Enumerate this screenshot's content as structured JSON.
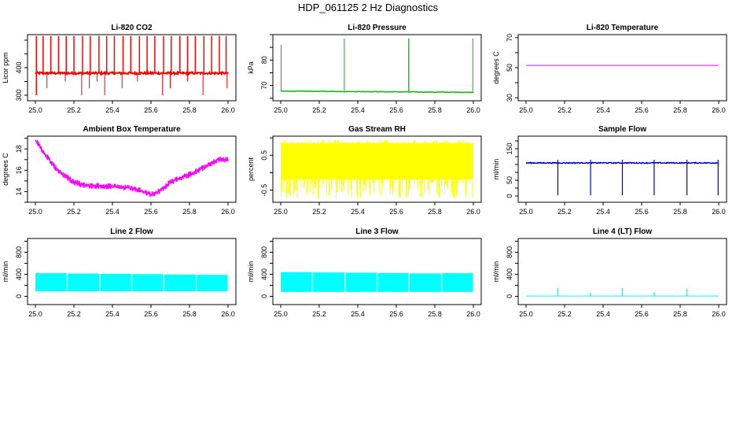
{
  "figure": {
    "title": "HDP_061125  2 Hz Diagnostics"
  },
  "chart_data": [
    {
      "type": "line",
      "title": "Li-820 CO2",
      "ylabel": "Licor ppm",
      "xlabel": "",
      "xlim": [
        25.0,
        26.0
      ],
      "xticks": [
        25.0,
        25.2,
        25.4,
        25.6,
        25.8,
        26.0
      ],
      "xtick_labels": [
        "25.0",
        "25.2",
        "25.4",
        "25.6",
        "25.8",
        "26.0"
      ],
      "ylim": [
        280,
        520
      ],
      "yticks": [
        300,
        400
      ],
      "ytick_labels": [
        "300",
        "400"
      ],
      "color": "#ff0000",
      "series": [
        {
          "baseline": 380,
          "noise": 4,
          "spike_up_value": 515,
          "spike_down_value": 300,
          "spikes_up_x": [
            25.005,
            25.04,
            25.08,
            25.12,
            25.16,
            25.2,
            25.245,
            25.285,
            25.33,
            25.37,
            25.41,
            25.455,
            25.495,
            25.54,
            25.58,
            25.62,
            25.665,
            25.705,
            25.75,
            25.79,
            25.83,
            25.875,
            25.915,
            25.955,
            25.99
          ],
          "spikes_down_x": [
            25.005,
            25.06,
            25.155,
            25.24,
            25.28,
            25.32,
            25.36,
            25.45,
            25.53,
            25.66,
            25.7,
            25.79,
            25.87,
            25.995
          ]
        }
      ]
    },
    {
      "type": "line",
      "title": "Li-820 Pressure",
      "ylabel": "kPa",
      "xlabel": "",
      "xlim": [
        25.0,
        26.0
      ],
      "xticks": [
        25.0,
        25.2,
        25.4,
        25.6,
        25.8,
        26.0
      ],
      "xtick_labels": [
        "25.0",
        "25.2",
        "25.4",
        "25.6",
        "25.8",
        "26.0"
      ],
      "ylim": [
        64,
        90
      ],
      "yticks": [
        70,
        80
      ],
      "ytick_labels": [
        "70",
        "80"
      ],
      "color": "#00bb00",
      "series": [
        {
          "baseline_start": 67.8,
          "baseline_end": 67.3,
          "noise": 0.1,
          "spike_up_value": 88.5,
          "spikes_up_x": [
            25.0,
            25.33,
            25.665,
            25.997
          ],
          "start_value": 86
        }
      ]
    },
    {
      "type": "line",
      "title": "Li-820 Temperature",
      "ylabel": "degrees C",
      "xlabel": "",
      "xlim": [
        25.0,
        26.0
      ],
      "xticks": [
        25.0,
        25.2,
        25.4,
        25.6,
        25.8,
        26.0
      ],
      "xtick_labels": [
        "25.0",
        "25.2",
        "25.4",
        "25.6",
        "25.8",
        "26.0"
      ],
      "ylim": [
        28,
        72
      ],
      "yticks": [
        30,
        50,
        70
      ],
      "ytick_labels": [
        "30",
        "50",
        "70"
      ],
      "color": "#ff00ff",
      "series": [
        {
          "x": [
            25.0,
            26.0
          ],
          "y": [
            51.5,
            51.5
          ]
        }
      ]
    },
    {
      "type": "line",
      "title": "Ambient Box Temperature",
      "ylabel": "degrees C",
      "xlabel": "",
      "xlim": [
        25.0,
        26.0
      ],
      "xticks": [
        25.0,
        25.2,
        25.4,
        25.6,
        25.8,
        26.0
      ],
      "xtick_labels": [
        "25.0",
        "25.2",
        "25.4",
        "25.6",
        "25.8",
        "26.0"
      ],
      "ylim": [
        13,
        19.2
      ],
      "yticks": [
        14,
        16,
        18
      ],
      "ytick_labels": [
        "14",
        "16",
        "18"
      ],
      "color": "#ff00ff",
      "series": [
        {
          "x": [
            25.0,
            25.05,
            25.1,
            25.15,
            25.2,
            25.25,
            25.3,
            25.4,
            25.5,
            25.55,
            25.6,
            25.65,
            25.7,
            25.8,
            25.9,
            25.95,
            26.0
          ],
          "y": [
            18.8,
            17.5,
            16.3,
            15.5,
            14.9,
            14.6,
            14.55,
            14.5,
            14.3,
            14.1,
            13.7,
            14.1,
            14.9,
            15.6,
            16.5,
            17.0,
            17.0
          ],
          "band": 0.3
        }
      ]
    },
    {
      "type": "line",
      "title": "Gas Stream RH",
      "ylabel": "percent",
      "xlabel": "",
      "xlim": [
        25.0,
        26.0
      ],
      "xticks": [
        25.0,
        25.2,
        25.4,
        25.6,
        25.8,
        26.0
      ],
      "xtick_labels": [
        "25.0",
        "25.2",
        "25.4",
        "25.6",
        "25.8",
        "26.0"
      ],
      "ylim": [
        -0.85,
        1.05
      ],
      "yticks": [
        -0.5,
        0.5
      ],
      "ytick_labels": [
        "-0.5",
        "0.5"
      ],
      "color": "#ffff00",
      "series": [
        {
          "band_top": 0.85,
          "band_bottom": -0.2,
          "spike_low": -0.75,
          "spike_high": 0.95
        }
      ]
    },
    {
      "type": "line",
      "title": "Sample Flow",
      "ylabel": "ml/min",
      "xlabel": "",
      "xlim": [
        25.0,
        26.0
      ],
      "xticks": [
        25.0,
        25.2,
        25.4,
        25.6,
        25.8,
        26.0
      ],
      "xtick_labels": [
        "25.0",
        "25.2",
        "25.4",
        "25.6",
        "25.8",
        "26.0"
      ],
      "ylim": [
        -20,
        190
      ],
      "yticks": [
        0,
        50,
        150
      ],
      "ytick_labels": [
        "0",
        "50",
        "150"
      ],
      "color": "#0000cc",
      "series": [
        {
          "baseline": 105,
          "noise": 1.5,
          "spike_up_value": 115,
          "spike_down_value": 2,
          "spikes_down_x": [
            25.165,
            25.335,
            25.5,
            25.665,
            25.835,
            25.997
          ],
          "dip_widths": [
            0.0,
            0.004,
            0.0,
            0.004,
            0.0,
            0.002
          ]
        }
      ]
    },
    {
      "type": "line",
      "title": "Line 2 Flow",
      "ylabel": "ml/min",
      "xlabel": "",
      "xlim": [
        25.0,
        26.0
      ],
      "xticks": [
        25.0,
        25.2,
        25.4,
        25.6,
        25.8,
        26.0
      ],
      "xtick_labels": [
        "25.0",
        "25.2",
        "25.4",
        "25.6",
        "25.8",
        "26.0"
      ],
      "ylim": [
        -150,
        1050
      ],
      "yticks": [
        0,
        400,
        800
      ],
      "ytick_labels": [
        "0",
        "400",
        "800"
      ],
      "color": "#00ffff",
      "series": [
        {
          "band_top": 420,
          "band_bottom": 90,
          "gaps_x": [
            25.165,
            25.335,
            25.5,
            25.665,
            25.835
          ],
          "end_top": 390
        }
      ]
    },
    {
      "type": "line",
      "title": "Line 3 Flow",
      "ylabel": "ml/min",
      "xlabel": "",
      "xlim": [
        25.0,
        26.0
      ],
      "xticks": [
        25.0,
        25.2,
        25.4,
        25.6,
        25.8,
        26.0
      ],
      "xtick_labels": [
        "25.0",
        "25.2",
        "25.4",
        "25.6",
        "25.8",
        "26.0"
      ],
      "ylim": [
        -150,
        1050
      ],
      "yticks": [
        0,
        400,
        800
      ],
      "ytick_labels": [
        "0",
        "400",
        "800"
      ],
      "color": "#00ffff",
      "series": [
        {
          "band_top": 440,
          "band_bottom": 80,
          "gaps_x": [
            25.165,
            25.335,
            25.5,
            25.665,
            25.835
          ],
          "end_top": 420
        }
      ]
    },
    {
      "type": "line",
      "title": "Line 4 (LT) Flow",
      "ylabel": "ml/min",
      "xlabel": "",
      "xlim": [
        25.0,
        26.0
      ],
      "xticks": [
        25.0,
        25.2,
        25.4,
        25.6,
        25.8,
        26.0
      ],
      "xtick_labels": [
        "25.0",
        "25.2",
        "25.4",
        "25.6",
        "25.8",
        "26.0"
      ],
      "ylim": [
        -150,
        1050
      ],
      "yticks": [
        0,
        400,
        800
      ],
      "ytick_labels": [
        "0",
        "400",
        "800"
      ],
      "color": "#00ffff",
      "series": [
        {
          "baseline": 5,
          "spike_up_value": 150,
          "spikes_up_x": [
            25.165,
            25.335,
            25.5,
            25.665,
            25.835
          ],
          "spike_heights": [
            150,
            60,
            150,
            70,
            140
          ]
        }
      ]
    }
  ]
}
